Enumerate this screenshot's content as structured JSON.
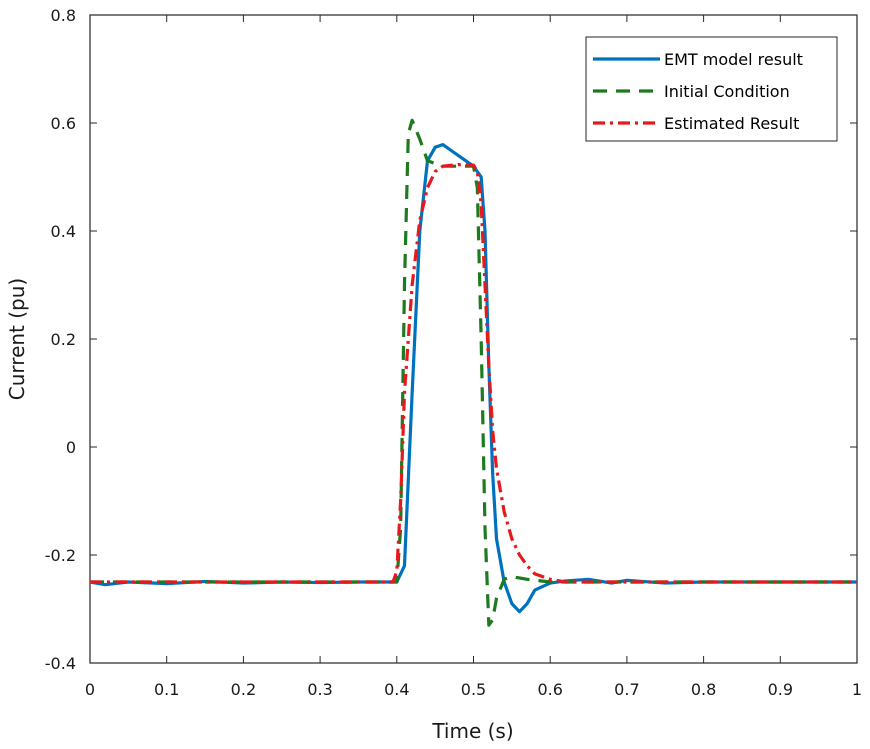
{
  "chart_data": {
    "type": "line",
    "xlabel": "Time (s)",
    "ylabel": "Current (pu)",
    "xlim": [
      0,
      1
    ],
    "ylim": [
      -0.4,
      0.8
    ],
    "xticks": [
      0,
      0.1,
      0.2,
      0.3,
      0.4,
      0.5,
      0.6,
      0.7,
      0.8,
      0.9,
      1
    ],
    "xtick_labels": [
      "0",
      "0.1",
      "0.2",
      "0.3",
      "0.4",
      "0.5",
      "0.6",
      "0.7",
      "0.8",
      "0.9",
      "1"
    ],
    "yticks": [
      -0.4,
      -0.2,
      0,
      0.2,
      0.4,
      0.6,
      0.8
    ],
    "ytick_labels": [
      "-0.4",
      "-0.2",
      "0",
      "0.2",
      "0.4",
      "0.6",
      "0.8"
    ],
    "grid": false,
    "legend_position": "top-right",
    "series": [
      {
        "name": "EMT model result",
        "color": "#0072BD",
        "style": "solid",
        "points": [
          [
            0,
            -0.25
          ],
          [
            0.02,
            -0.255
          ],
          [
            0.05,
            -0.25
          ],
          [
            0.1,
            -0.253
          ],
          [
            0.15,
            -0.249
          ],
          [
            0.2,
            -0.252
          ],
          [
            0.25,
            -0.25
          ],
          [
            0.3,
            -0.251
          ],
          [
            0.35,
            -0.25
          ],
          [
            0.4,
            -0.25
          ],
          [
            0.41,
            -0.22
          ],
          [
            0.42,
            0.1
          ],
          [
            0.43,
            0.4
          ],
          [
            0.44,
            0.53
          ],
          [
            0.45,
            0.555
          ],
          [
            0.46,
            0.56
          ],
          [
            0.47,
            0.55
          ],
          [
            0.48,
            0.54
          ],
          [
            0.49,
            0.53
          ],
          [
            0.5,
            0.52
          ],
          [
            0.51,
            0.5
          ],
          [
            0.515,
            0.4
          ],
          [
            0.52,
            0.15
          ],
          [
            0.525,
            -0.05
          ],
          [
            0.53,
            -0.17
          ],
          [
            0.54,
            -0.25
          ],
          [
            0.55,
            -0.29
          ],
          [
            0.56,
            -0.305
          ],
          [
            0.57,
            -0.29
          ],
          [
            0.58,
            -0.265
          ],
          [
            0.6,
            -0.252
          ],
          [
            0.62,
            -0.248
          ],
          [
            0.65,
            -0.245
          ],
          [
            0.68,
            -0.252
          ],
          [
            0.7,
            -0.247
          ],
          [
            0.75,
            -0.252
          ],
          [
            0.8,
            -0.25
          ],
          [
            0.85,
            -0.25
          ],
          [
            0.9,
            -0.25
          ],
          [
            1,
            -0.25
          ]
        ]
      },
      {
        "name": "Initial Condition",
        "color": "#1E7A1E",
        "style": "dashed",
        "points": [
          [
            0,
            -0.25
          ],
          [
            0.1,
            -0.25
          ],
          [
            0.2,
            -0.25
          ],
          [
            0.3,
            -0.25
          ],
          [
            0.4,
            -0.25
          ],
          [
            0.405,
            -0.15
          ],
          [
            0.41,
            0.3
          ],
          [
            0.415,
            0.58
          ],
          [
            0.42,
            0.605
          ],
          [
            0.43,
            0.57
          ],
          [
            0.44,
            0.53
          ],
          [
            0.46,
            0.52
          ],
          [
            0.48,
            0.52
          ],
          [
            0.5,
            0.52
          ],
          [
            0.505,
            0.48
          ],
          [
            0.51,
            0.2
          ],
          [
            0.515,
            -0.15
          ],
          [
            0.52,
            -0.33
          ],
          [
            0.525,
            -0.32
          ],
          [
            0.53,
            -0.28
          ],
          [
            0.54,
            -0.245
          ],
          [
            0.55,
            -0.24
          ],
          [
            0.57,
            -0.245
          ],
          [
            0.6,
            -0.25
          ],
          [
            0.7,
            -0.25
          ],
          [
            0.8,
            -0.25
          ],
          [
            0.9,
            -0.25
          ],
          [
            1,
            -0.25
          ]
        ]
      },
      {
        "name": "Estimated Result",
        "color": "#E41A1C",
        "style": "dashdot",
        "points": [
          [
            0,
            -0.25
          ],
          [
            0.1,
            -0.25
          ],
          [
            0.2,
            -0.25
          ],
          [
            0.3,
            -0.25
          ],
          [
            0.395,
            -0.25
          ],
          [
            0.4,
            -0.23
          ],
          [
            0.405,
            -0.1
          ],
          [
            0.41,
            0.1
          ],
          [
            0.42,
            0.3
          ],
          [
            0.43,
            0.42
          ],
          [
            0.44,
            0.48
          ],
          [
            0.45,
            0.51
          ],
          [
            0.46,
            0.52
          ],
          [
            0.48,
            0.523
          ],
          [
            0.5,
            0.522
          ],
          [
            0.505,
            0.51
          ],
          [
            0.51,
            0.45
          ],
          [
            0.515,
            0.3
          ],
          [
            0.52,
            0.15
          ],
          [
            0.525,
            0.03
          ],
          [
            0.53,
            -0.04
          ],
          [
            0.54,
            -0.12
          ],
          [
            0.55,
            -0.17
          ],
          [
            0.56,
            -0.2
          ],
          [
            0.57,
            -0.22
          ],
          [
            0.58,
            -0.235
          ],
          [
            0.6,
            -0.245
          ],
          [
            0.62,
            -0.25
          ],
          [
            0.7,
            -0.25
          ],
          [
            0.8,
            -0.25
          ],
          [
            0.9,
            -0.25
          ],
          [
            1,
            -0.25
          ]
        ]
      }
    ]
  }
}
